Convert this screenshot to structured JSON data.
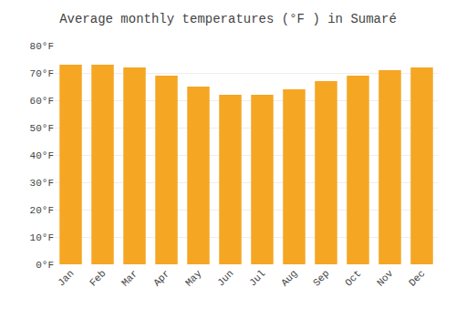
{
  "chart_data": {
    "type": "bar",
    "title": "Average monthly temperatures (°F ) in Sumaré",
    "categories": [
      "Jan",
      "Feb",
      "Mar",
      "Apr",
      "May",
      "Jun",
      "Jul",
      "Aug",
      "Sep",
      "Oct",
      "Nov",
      "Dec"
    ],
    "values": [
      73,
      73,
      72,
      69,
      65,
      62,
      62,
      64,
      67,
      69,
      71,
      72
    ],
    "color": "#F5A623",
    "ylim": [
      0,
      80
    ],
    "yticks": [
      {
        "value": 0,
        "label": "0°F"
      },
      {
        "value": 10,
        "label": "10°F"
      },
      {
        "value": 20,
        "label": "20°F"
      },
      {
        "value": 30,
        "label": "30°F"
      },
      {
        "value": 40,
        "label": "40°F"
      },
      {
        "value": 50,
        "label": "50°F"
      },
      {
        "value": 60,
        "label": "60°F"
      },
      {
        "value": 70,
        "label": "70°F"
      },
      {
        "value": 80,
        "label": "80°F"
      }
    ],
    "grid": true
  }
}
